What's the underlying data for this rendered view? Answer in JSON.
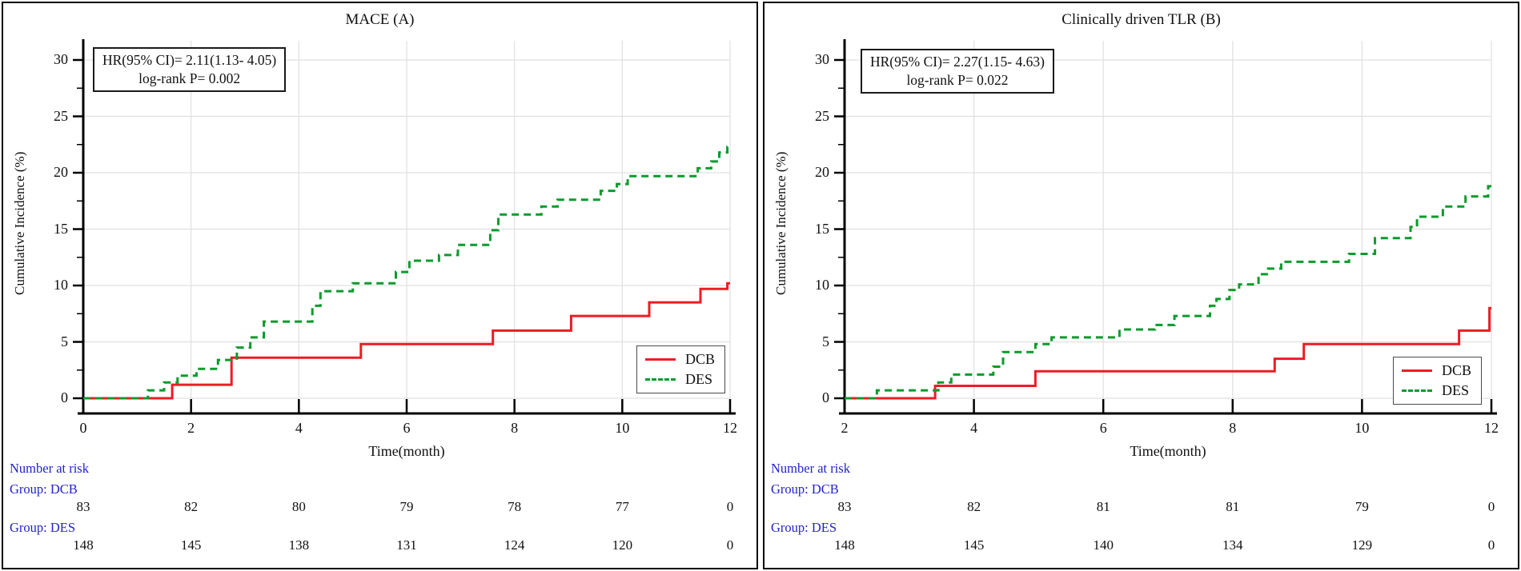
{
  "figure_colors": {
    "dcb_line": "#ed1c24",
    "des_line": "#0a9b2d",
    "risk_text": "#2222cc",
    "grid": "#e0e0e0",
    "axis": "#000000"
  },
  "chart_data": [
    {
      "type": "line",
      "subtype": "step",
      "title": "MACE (A)",
      "xlabel": "Time(month)",
      "ylabel": "Cumulative Incidence (%)",
      "xlim": [
        0,
        12
      ],
      "ylim": [
        0,
        30
      ],
      "xticks": [
        0,
        2,
        4,
        6,
        8,
        10,
        12
      ],
      "yticks": [
        0,
        5,
        10,
        15,
        20,
        25,
        30
      ],
      "grid": true,
      "annotation": {
        "line1": "HR(95% CI)= 2.11(1.13- 4.05)",
        "line2": "log-rank P= 0.002"
      },
      "legend": {
        "position": "lower right",
        "entries": [
          {
            "name": "DCB",
            "color": "#ed1c24",
            "style": "solid"
          },
          {
            "name": "DES",
            "color": "#0a9b2d",
            "style": "dashed"
          }
        ]
      },
      "series": [
        {
          "name": "DCB",
          "color": "#ed1c24",
          "dash": "solid",
          "steps": [
            [
              0,
              0
            ],
            [
              1.65,
              1.2
            ],
            [
              2.75,
              3.6
            ],
            [
              5.15,
              4.8
            ],
            [
              7.6,
              6.0
            ],
            [
              9.05,
              7.3
            ],
            [
              10.5,
              8.5
            ],
            [
              11.45,
              9.7
            ],
            [
              11.95,
              10.2
            ]
          ]
        },
        {
          "name": "DES",
          "color": "#0a9b2d",
          "dash": "dashed",
          "steps": [
            [
              0,
              0
            ],
            [
              1.2,
              0.7
            ],
            [
              1.5,
              1.4
            ],
            [
              1.75,
              2.0
            ],
            [
              2.1,
              2.6
            ],
            [
              2.5,
              3.4
            ],
            [
              2.85,
              4.5
            ],
            [
              3.1,
              5.4
            ],
            [
              3.35,
              6.8
            ],
            [
              4.25,
              8.2
            ],
            [
              4.4,
              9.5
            ],
            [
              5.0,
              10.2
            ],
            [
              5.8,
              11.2
            ],
            [
              6.05,
              12.2
            ],
            [
              6.6,
              12.7
            ],
            [
              6.95,
              13.6
            ],
            [
              7.55,
              14.9
            ],
            [
              7.7,
              16.3
            ],
            [
              8.5,
              17.0
            ],
            [
              8.8,
              17.6
            ],
            [
              9.6,
              18.4
            ],
            [
              9.9,
              19.0
            ],
            [
              10.1,
              19.7
            ],
            [
              11.4,
              20.4
            ],
            [
              11.65,
              21.0
            ],
            [
              11.8,
              21.8
            ],
            [
              11.95,
              22.3
            ]
          ]
        }
      ],
      "number_at_risk": {
        "header": "Number at risk",
        "groups": [
          {
            "label": "Group: DCB",
            "counts": [
              83,
              82,
              80,
              79,
              78,
              77,
              0
            ]
          },
          {
            "label": "Group: DES",
            "counts": [
              148,
              145,
              138,
              131,
              124,
              120,
              0
            ]
          }
        ]
      }
    },
    {
      "type": "line",
      "subtype": "step",
      "title": "Clinically driven TLR (B)",
      "xlabel": "Time(month)",
      "ylabel": "Cumulative Incidence (%)",
      "xlim": [
        2,
        12
      ],
      "ylim": [
        0,
        30
      ],
      "xticks": [
        2,
        4,
        6,
        8,
        10,
        12
      ],
      "yticks": [
        0,
        5,
        10,
        15,
        20,
        25,
        30
      ],
      "grid": true,
      "annotation": {
        "line1": "HR(95% CI)= 2.27(1.15- 4.63)",
        "line2": "log-rank P= 0.022"
      },
      "legend": {
        "position": "lower right",
        "entries": [
          {
            "name": "DCB",
            "color": "#ed1c24",
            "style": "solid"
          },
          {
            "name": "DES",
            "color": "#0a9b2d",
            "style": "dashed"
          }
        ]
      },
      "series": [
        {
          "name": "DCB",
          "color": "#ed1c24",
          "dash": "solid",
          "steps": [
            [
              2,
              0
            ],
            [
              3.4,
              1.1
            ],
            [
              4.95,
              2.4
            ],
            [
              8.65,
              3.5
            ],
            [
              9.1,
              4.8
            ],
            [
              11.5,
              6.0
            ],
            [
              11.97,
              8.0
            ]
          ]
        },
        {
          "name": "DES",
          "color": "#0a9b2d",
          "dash": "dashed",
          "steps": [
            [
              2,
              0
            ],
            [
              2.5,
              0.7
            ],
            [
              3.45,
              1.4
            ],
            [
              3.65,
              2.1
            ],
            [
              4.3,
              2.8
            ],
            [
              4.45,
              4.1
            ],
            [
              4.95,
              4.8
            ],
            [
              5.2,
              5.4
            ],
            [
              6.25,
              6.1
            ],
            [
              6.8,
              6.5
            ],
            [
              7.1,
              7.3
            ],
            [
              7.65,
              8.2
            ],
            [
              7.75,
              8.8
            ],
            [
              7.95,
              9.6
            ],
            [
              8.1,
              10.1
            ],
            [
              8.4,
              11.0
            ],
            [
              8.55,
              11.5
            ],
            [
              8.75,
              12.1
            ],
            [
              9.8,
              12.8
            ],
            [
              10.2,
              14.2
            ],
            [
              10.75,
              15.2
            ],
            [
              10.85,
              16.1
            ],
            [
              11.25,
              17.0
            ],
            [
              11.6,
              17.9
            ],
            [
              11.95,
              18.8
            ]
          ]
        }
      ],
      "number_at_risk": {
        "header": "Number at risk",
        "groups": [
          {
            "label": "Group: DCB",
            "counts": [
              83,
              82,
              81,
              81,
              79,
              0
            ]
          },
          {
            "label": "Group: DES",
            "counts": [
              148,
              145,
              140,
              134,
              129,
              0
            ]
          }
        ]
      }
    }
  ]
}
